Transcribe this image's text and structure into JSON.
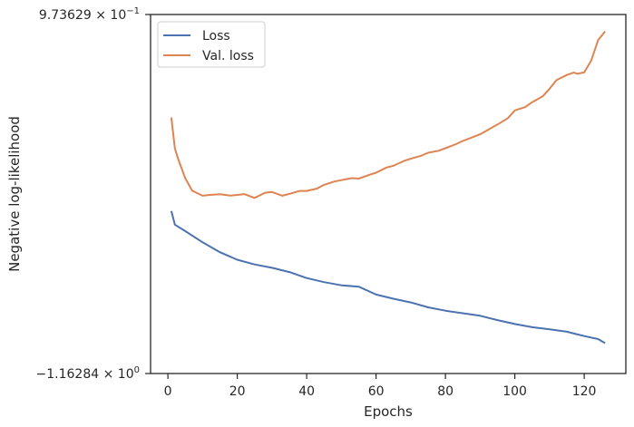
{
  "chart_data": {
    "type": "line",
    "xlabel": "Epochs",
    "ylabel": "Negative log-likelihood",
    "xlim": [
      -5,
      132
    ],
    "ylim": [
      -1.16284,
      0.973629
    ],
    "xticks": [
      0,
      20,
      40,
      60,
      80,
      100,
      120
    ],
    "xtick_labels": [
      "0",
      "20",
      "40",
      "60",
      "80",
      "100",
      "120"
    ],
    "ytick_labels": {
      "top": {
        "mantissa": "9.73629",
        "base": "10",
        "exp": "−1"
      },
      "bottom": {
        "mantissa": "−1.16284",
        "base": "10",
        "exp": "0"
      }
    },
    "legend_position": "upper-left",
    "series": [
      {
        "name": "Loss",
        "color": "#4c72b0",
        "x": [
          1,
          2,
          5,
          10,
          15,
          20,
          25,
          30,
          35,
          40,
          45,
          50,
          55,
          60,
          65,
          70,
          75,
          80,
          85,
          90,
          95,
          100,
          105,
          110,
          115,
          120,
          124,
          126
        ],
        "y": [
          -0.196,
          -0.277,
          -0.315,
          -0.382,
          -0.441,
          -0.486,
          -0.514,
          -0.534,
          -0.559,
          -0.595,
          -0.619,
          -0.638,
          -0.646,
          -0.693,
          -0.718,
          -0.74,
          -0.769,
          -0.789,
          -0.804,
          -0.819,
          -0.845,
          -0.868,
          -0.887,
          -0.9,
          -0.914,
          -0.94,
          -0.958,
          -0.982
        ]
      },
      {
        "name": "Val. loss",
        "color": "#dd8452",
        "x": [
          1,
          2,
          3,
          5,
          7,
          10,
          12,
          15,
          18,
          20,
          22,
          25,
          28,
          30,
          33,
          35,
          38,
          40,
          43,
          45,
          48,
          50,
          53,
          55,
          58,
          60,
          63,
          65,
          68,
          70,
          73,
          75,
          78,
          80,
          83,
          85,
          88,
          90,
          93,
          95,
          98,
          100,
          103,
          105,
          108,
          110,
          112,
          115,
          117,
          118,
          120,
          122,
          124,
          126
        ],
        "y": [
          0.361,
          0.178,
          0.111,
          0.0,
          -0.075,
          -0.105,
          -0.1,
          -0.096,
          -0.104,
          -0.1,
          -0.095,
          -0.118,
          -0.087,
          -0.083,
          -0.105,
          -0.094,
          -0.076,
          -0.076,
          -0.062,
          -0.04,
          -0.02,
          -0.012,
          0.0,
          -0.003,
          0.019,
          0.032,
          0.063,
          0.073,
          0.102,
          0.115,
          0.133,
          0.151,
          0.163,
          0.178,
          0.202,
          0.221,
          0.245,
          0.261,
          0.296,
          0.319,
          0.357,
          0.403,
          0.423,
          0.452,
          0.486,
          0.532,
          0.583,
          0.614,
          0.628,
          0.621,
          0.629,
          0.699,
          0.821,
          0.873
        ]
      }
    ]
  }
}
